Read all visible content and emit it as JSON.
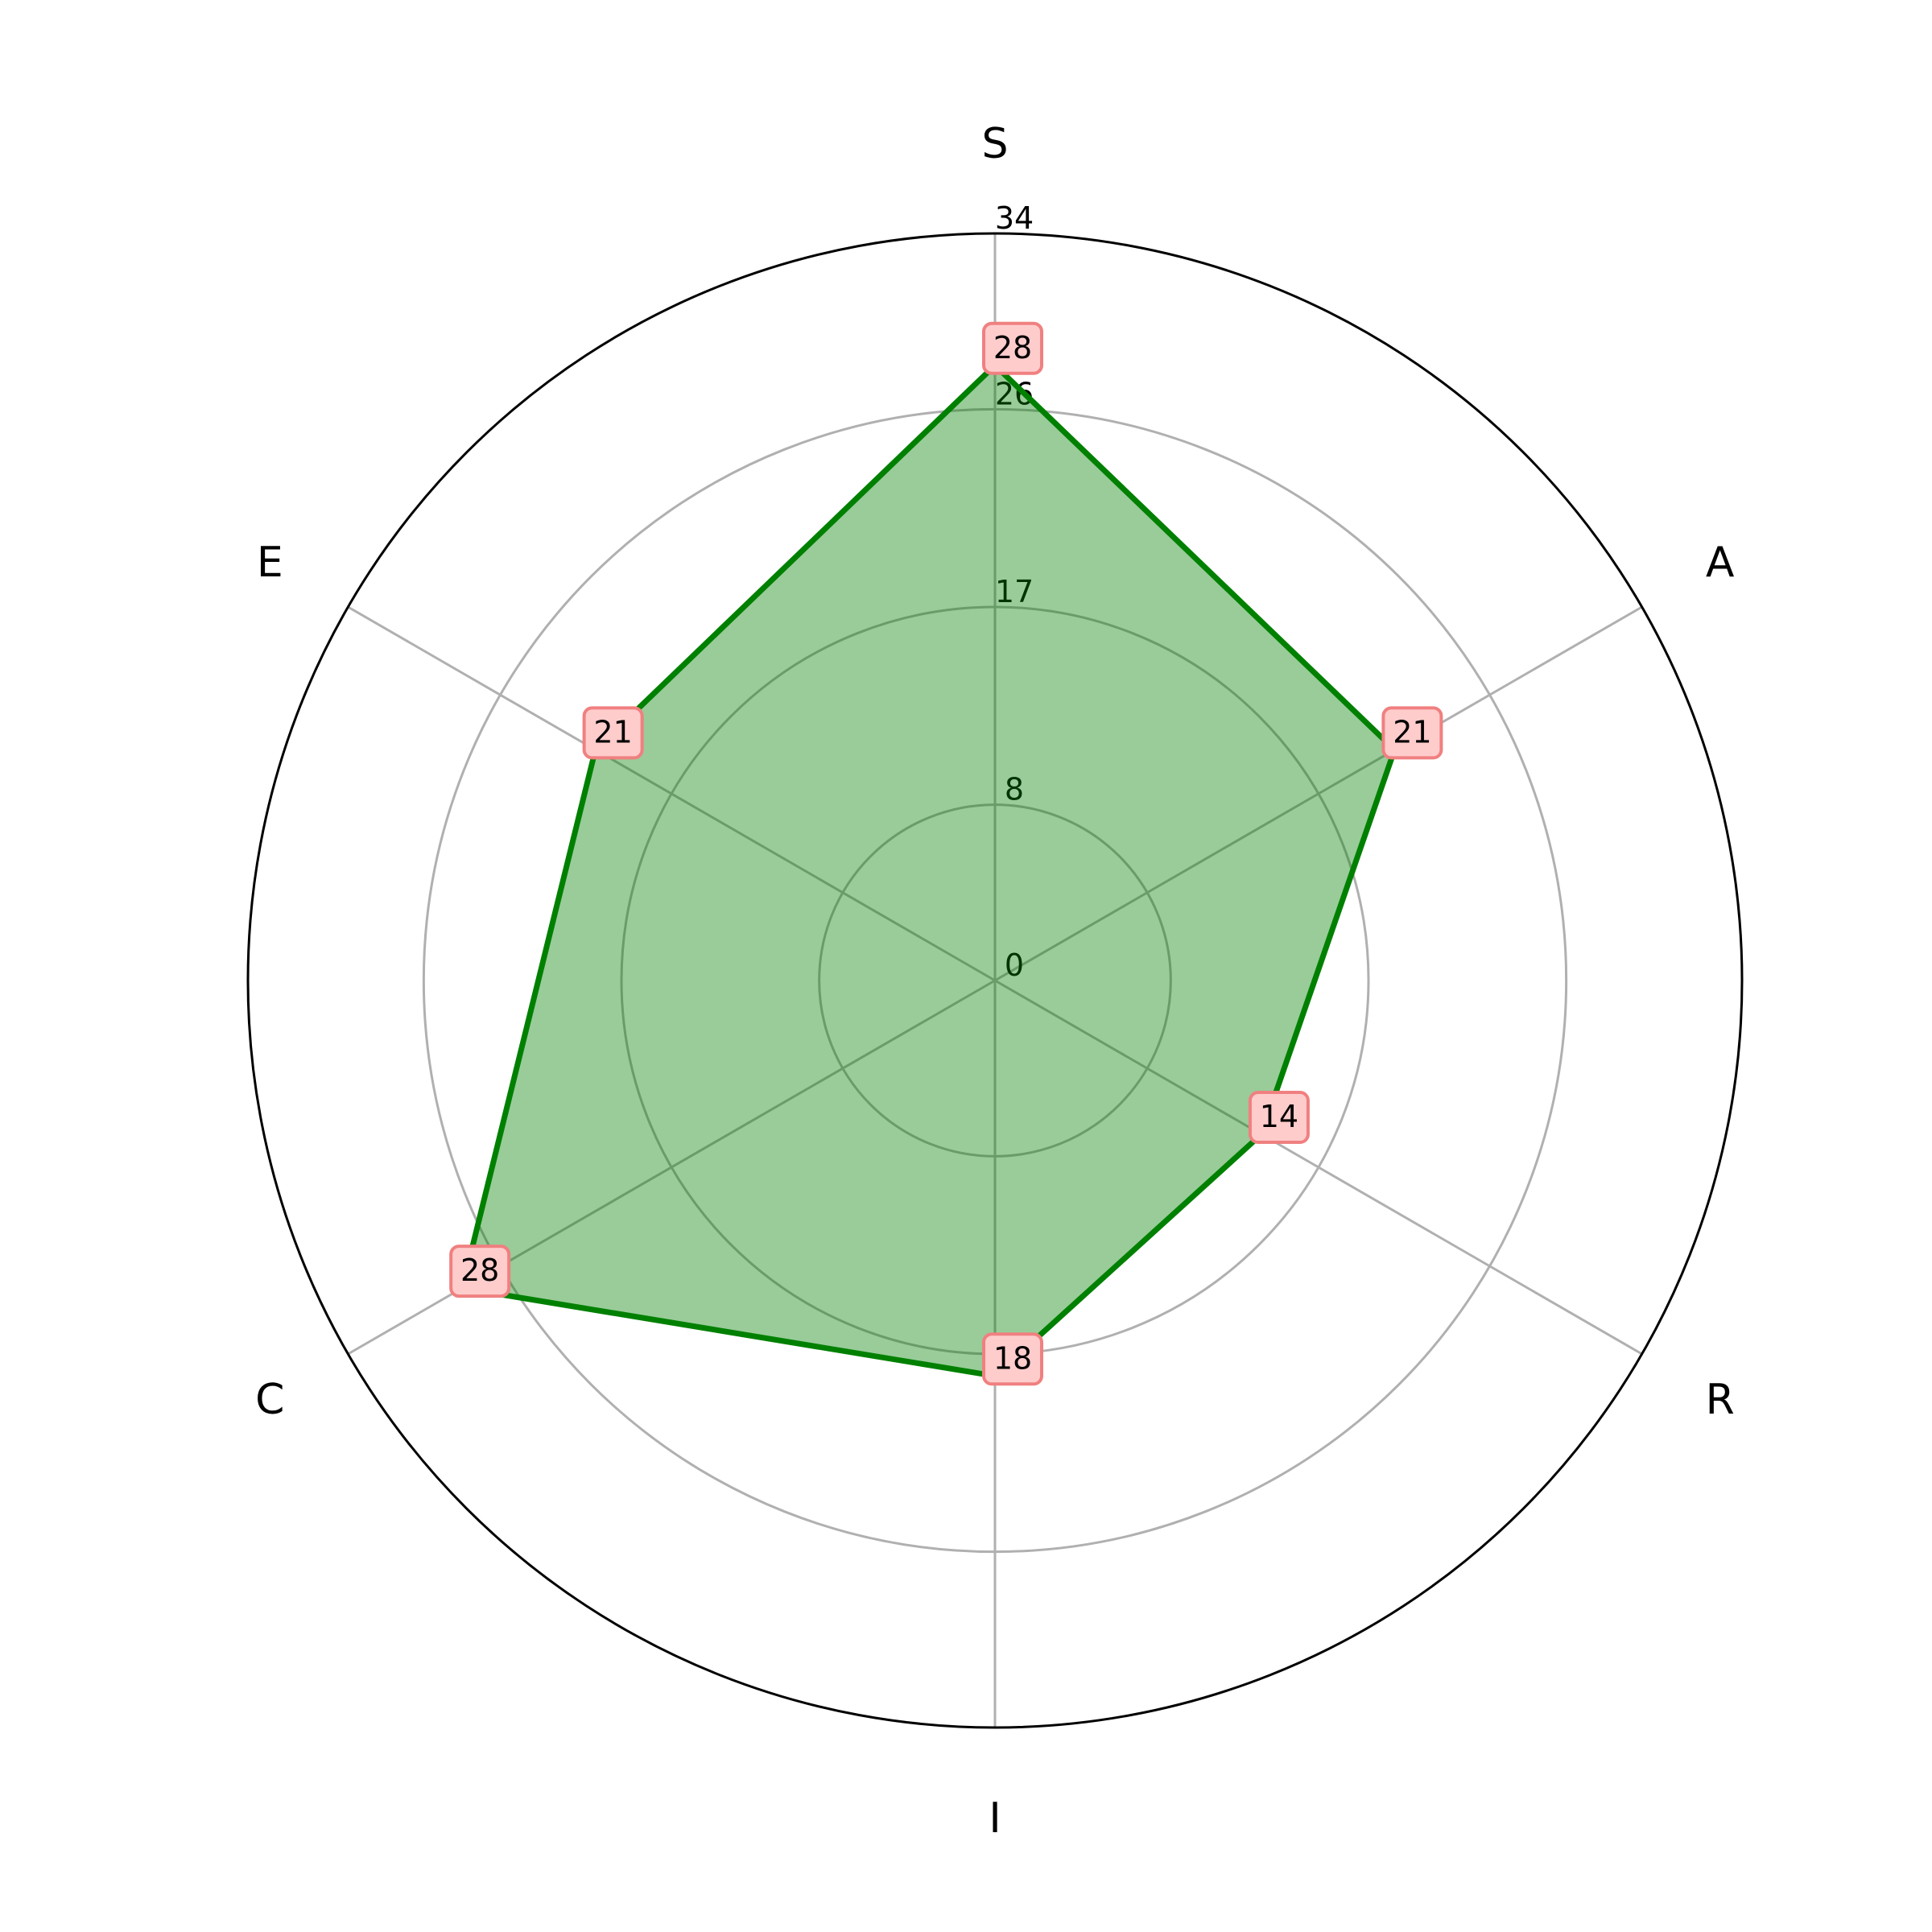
{
  "chart_data": {
    "type": "radar",
    "categories": [
      "S",
      "A",
      "R",
      "I",
      "C",
      "E"
    ],
    "series": [
      {
        "values": [
          28,
          21,
          14,
          18,
          28,
          21
        ]
      }
    ],
    "radial_ticks": [
      0,
      8,
      17,
      26,
      34
    ],
    "rlim": [
      0,
      34
    ],
    "grid": true,
    "legend": "none",
    "colors": {
      "line": "#008000",
      "fill": "#008000",
      "grid": "#b0b0b0",
      "outer": "#000000",
      "label_box_fill": "#ffcccc",
      "label_box_stroke": "#f08080"
    }
  }
}
